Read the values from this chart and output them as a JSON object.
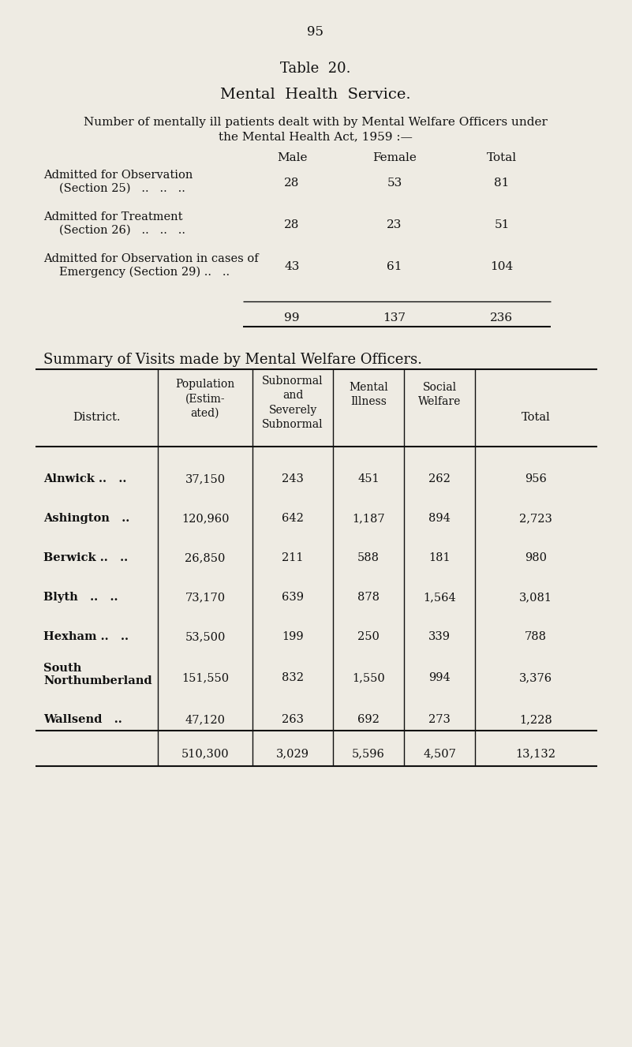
{
  "page_number": "95",
  "title1": "Table  20.",
  "title2": "Mental  Health  Service.",
  "subtitle_line1": "Number of mentally ill patients dealt with by Mental Welfare Officers under",
  "subtitle_line2": "the Mental Health Act, 1959 :—",
  "sec1_col_headers": [
    "Male",
    "Female",
    "Total"
  ],
  "sec1_rows": [
    [
      "Admitted for Observation",
      "(Section 25)   ..   ..   ..",
      "28",
      "53",
      "81"
    ],
    [
      "Admitted for Treatment",
      "(Section 26)   ..   ..   ..",
      "28",
      "23",
      "51"
    ],
    [
      "Admitted for Observation in cases of",
      "Emergency (Section 29) ..   ..",
      "43",
      "61",
      "104"
    ]
  ],
  "sec1_totals": [
    "99",
    "137",
    "236"
  ],
  "sec2_title": "Summary of Visits made by Mental Welfare Officers.",
  "sec2_col_headers": [
    "District.",
    "Population\n(Estim-\nated)",
    "Subnormal\nand\nSeverely\nSubnormal",
    "Mental\nIllness",
    "Social\nWelfare",
    "Total"
  ],
  "sec2_rows": [
    [
      "Alnwick ..   ..",
      "37,150",
      "243",
      "451",
      "262",
      "956"
    ],
    [
      "Ashington   ..",
      "120,960",
      "642",
      "1,187",
      "894",
      "2,723"
    ],
    [
      "Berwick ..   ..",
      "26,850",
      "211",
      "588",
      "181",
      "980"
    ],
    [
      "Blyth   ..   ..",
      "73,170",
      "639",
      "878",
      "1,564",
      "3,081"
    ],
    [
      "Hexham ..   ..",
      "53,500",
      "199",
      "250",
      "339",
      "788"
    ],
    [
      "South\nNorthumberland",
      "151,550",
      "832",
      "1,550",
      "994",
      "3,376"
    ],
    [
      "Wallsend   ..",
      "47,120",
      "263",
      "692",
      "273",
      "1,228"
    ]
  ],
  "sec2_totals": [
    "",
    "510,300",
    "3,029",
    "5,596",
    "4,507",
    "13,132"
  ],
  "bg_color": "#eeebe3"
}
